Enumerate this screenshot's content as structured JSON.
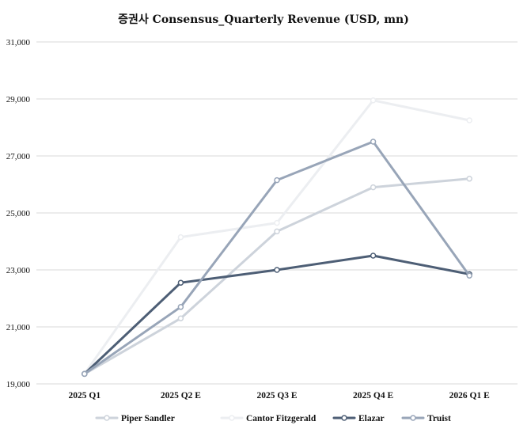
{
  "chart_data": {
    "type": "line",
    "title": "증권사 Consensus_Quarterly Revenue (USD, mn)",
    "categories": [
      "2025 Q1",
      "2025 Q2 E",
      "2025 Q3 E",
      "2025 Q4 E",
      "2026 Q1 E"
    ],
    "ylim": [
      19000,
      31000
    ],
    "yticks": [
      "19,000",
      "21,000",
      "23,000",
      "25,000",
      "27,000",
      "29,000",
      "31,000"
    ],
    "ytick_values": [
      19000,
      21000,
      23000,
      25000,
      27000,
      29000,
      31000
    ],
    "grid": true,
    "legend_position": "bottom",
    "series": [
      {
        "name": "Piper Sandler",
        "color": "#cdd3db",
        "values": [
          19350,
          21300,
          24350,
          25900,
          26200
        ]
      },
      {
        "name": "Cantor Fitzgerald",
        "color": "#eceef1",
        "values": [
          19350,
          24150,
          24650,
          28950,
          28250
        ]
      },
      {
        "name": "Elazar",
        "color": "#4d5e75",
        "values": [
          19350,
          22550,
          23000,
          23500,
          22850
        ]
      },
      {
        "name": "Truist",
        "color": "#98a5b8",
        "values": [
          19350,
          21700,
          26150,
          27500,
          22800
        ]
      }
    ]
  }
}
